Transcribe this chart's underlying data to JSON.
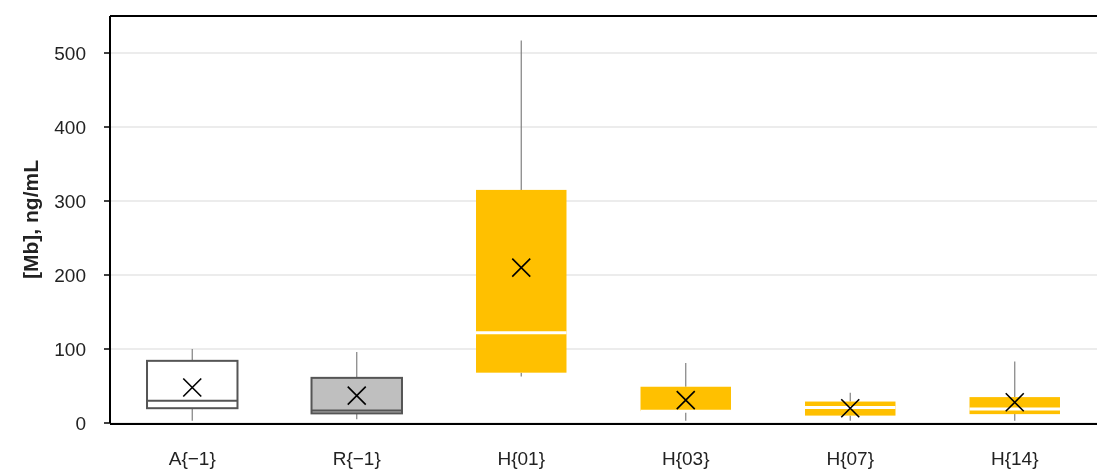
{
  "chart_data": {
    "type": "box",
    "ylabel": "[Mb], ng/mL",
    "categories": [
      "A{−1}",
      "R{−1}",
      "H{01}",
      "H{03}",
      "H{07}",
      "H{14}"
    ],
    "colors": [
      "#ffffff",
      "#bfbfbf",
      "#ffc000",
      "#ffc000",
      "#ffc000",
      "#ffc000"
    ],
    "boxes": [
      {
        "low": 3,
        "q1": 20,
        "median": 30,
        "q3": 84,
        "high": 100,
        "mean": 48
      },
      {
        "low": 5,
        "q1": 13,
        "median": 17,
        "q3": 61,
        "high": 96,
        "mean": 37
      },
      {
        "low": 63,
        "q1": 68,
        "median": 122,
        "q3": 315,
        "high": 517,
        "mean": 210
      },
      {
        "low": 3,
        "q1": 16,
        "median": 16,
        "q3": 49,
        "high": 81,
        "mean": 31
      },
      {
        "low": 3,
        "q1": 10,
        "median": 21,
        "q3": 29,
        "high": 41,
        "mean": 20
      },
      {
        "low": 3,
        "q1": 12,
        "median": 19,
        "q3": 35,
        "high": 83,
        "mean": 28
      }
    ],
    "ylim": [
      0,
      550
    ],
    "yticks": [
      0,
      100,
      200,
      300,
      400,
      500
    ],
    "grid": "y",
    "marker": "cross"
  }
}
